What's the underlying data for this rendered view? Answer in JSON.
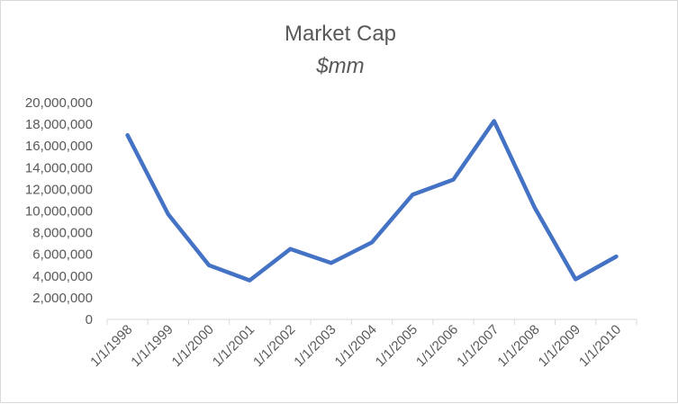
{
  "chart_data": {
    "type": "line",
    "title": "Market Cap",
    "subtitle": "$mm",
    "xlabel": "",
    "ylabel": "",
    "categories": [
      "1/1/1998",
      "1/1/1999",
      "1/1/2000",
      "1/1/2001",
      "1/1/2002",
      "1/1/2003",
      "1/1/2004",
      "1/1/2005",
      "1/1/2006",
      "1/1/2007",
      "1/1/2008",
      "1/1/2009",
      "1/1/2010"
    ],
    "series": [
      {
        "values": [
          17000000,
          9700000,
          5000000,
          3600000,
          6500000,
          5200000,
          7100000,
          11500000,
          12900000,
          18300000,
          10300000,
          3700000,
          5800000
        ],
        "color": "#4472C4"
      }
    ],
    "ylim": [
      0,
      20000000
    ],
    "yticks": [
      0,
      2000000,
      4000000,
      6000000,
      8000000,
      10000000,
      12000000,
      14000000,
      16000000,
      18000000,
      20000000
    ],
    "ytick_labels": [
      "0",
      "2,000,000",
      "4,000,000",
      "6,000,000",
      "8,000,000",
      "10,000,000",
      "12,000,000",
      "14,000,000",
      "16,000,000",
      "18,000,000",
      "20,000,000"
    ],
    "grid": false,
    "legend": "none",
    "axis_color": "#d9d9d9",
    "text_color": "#595959"
  }
}
